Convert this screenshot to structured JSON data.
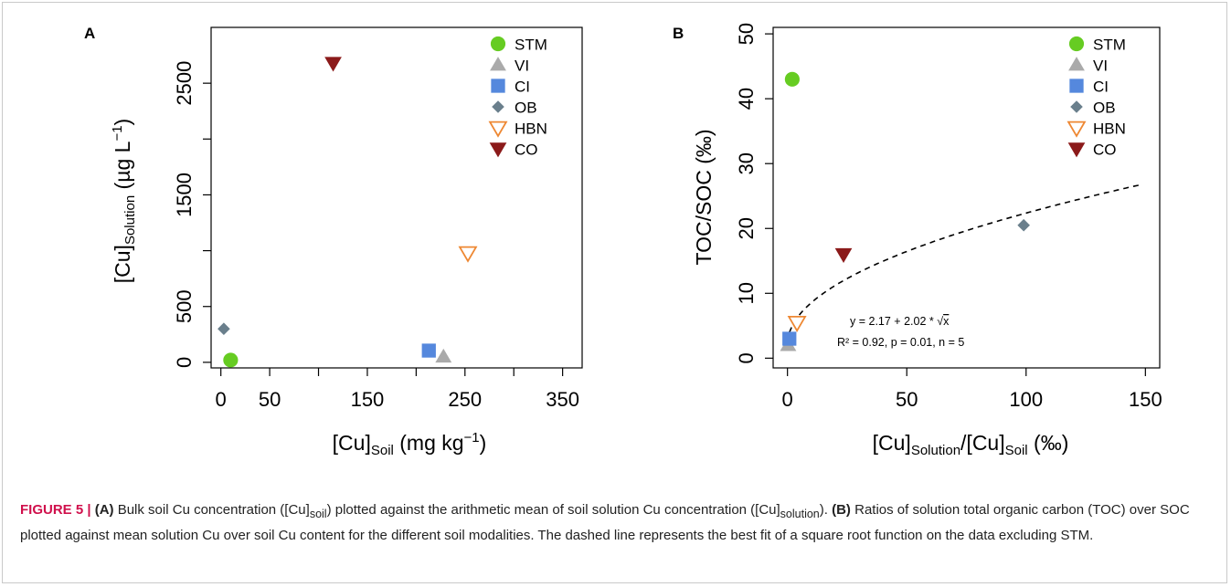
{
  "chart_data": [
    {
      "panel": "A",
      "type": "scatter",
      "xlim": [
        -10,
        370
      ],
      "ylim": [
        -50,
        3000
      ],
      "xticks": [
        {
          "v": 0,
          "t": "0"
        },
        {
          "v": 50,
          "t": "50"
        },
        {
          "v": 150,
          "t": "150"
        },
        {
          "v": 250,
          "t": "250"
        },
        {
          "v": 350,
          "t": "350"
        }
      ],
      "xtick_marks": [
        0,
        50,
        100,
        150,
        200,
        250,
        300,
        350
      ],
      "yticks": [
        {
          "v": 0,
          "t": "0"
        },
        {
          "v": 500,
          "t": "500"
        },
        {
          "v": 1500,
          "t": "1500"
        },
        {
          "v": 2500,
          "t": "2500"
        }
      ],
      "ytick_marks": [
        0,
        500,
        1000,
        1500,
        2000,
        2500
      ],
      "xlabel": {
        "main": "[Cu]",
        "sub": "Soil",
        "rest": " (mg kg",
        "sup": "−1",
        "end": ")"
      },
      "ylabel": {
        "main": "[Cu]",
        "sub": "Solution",
        "rest": " (µg L",
        "sup": "−1",
        "end": ")"
      },
      "grid": false,
      "legend_position": "top-right",
      "series": [
        {
          "name": "STM",
          "marker": "circle",
          "color": "#66cc22",
          "x": 10,
          "y": 20
        },
        {
          "name": "VI",
          "marker": "triangle-up",
          "color": "#aaaaaa",
          "x": 228,
          "y": 50
        },
        {
          "name": "CI",
          "marker": "square",
          "color": "#5588dd",
          "x": 213,
          "y": 105
        },
        {
          "name": "OB",
          "marker": "diamond",
          "color": "#6a7f8c",
          "x": 3,
          "y": 300
        },
        {
          "name": "HBN",
          "marker": "triangle-down-open",
          "color": "#ee8833",
          "x": 253,
          "y": 980
        },
        {
          "name": "CO",
          "marker": "triangle-down",
          "color": "#8b1a1a",
          "x": 115,
          "y": 2680
        }
      ]
    },
    {
      "panel": "B",
      "type": "scatter",
      "xlim": [
        -6,
        156
      ],
      "ylim": [
        -1.5,
        51
      ],
      "xticks": [
        {
          "v": 0,
          "t": "0"
        },
        {
          "v": 50,
          "t": "50"
        },
        {
          "v": 100,
          "t": "100"
        },
        {
          "v": 150,
          "t": "150"
        }
      ],
      "xtick_marks": [
        0,
        50,
        100,
        150
      ],
      "yticks": [
        {
          "v": 0,
          "t": "0"
        },
        {
          "v": 10,
          "t": "10"
        },
        {
          "v": 20,
          "t": "20"
        },
        {
          "v": 30,
          "t": "30"
        },
        {
          "v": 40,
          "t": "40"
        },
        {
          "v": 50,
          "t": "50"
        }
      ],
      "ytick_marks": [
        0,
        10,
        20,
        30,
        40,
        50
      ],
      "xlabel": {
        "main": "[Cu]",
        "sub": "Solution",
        "rest": "/[Cu]",
        "sub2": "Soil",
        "end": " (‰)"
      },
      "ylabel": {
        "main": "TOC/SOC (‰)"
      },
      "grid": false,
      "legend_position": "top-right",
      "series": [
        {
          "name": "STM",
          "marker": "circle",
          "color": "#66cc22",
          "x": 2,
          "y": 43
        },
        {
          "name": "VI",
          "marker": "triangle-up",
          "color": "#aaaaaa",
          "x": 0.3,
          "y": 2
        },
        {
          "name": "CI",
          "marker": "square",
          "color": "#5588dd",
          "x": 0.8,
          "y": 3
        },
        {
          "name": "OB",
          "marker": "diamond",
          "color": "#6a7f8c",
          "x": 99,
          "y": 20.5
        },
        {
          "name": "HBN",
          "marker": "triangle-down-open",
          "color": "#ee8833",
          "x": 4,
          "y": 5.5
        },
        {
          "name": "CO",
          "marker": "triangle-down",
          "color": "#8b1a1a",
          "x": 23.5,
          "y": 16
        }
      ],
      "fit": {
        "a": 2.17,
        "b": 2.02,
        "x_from": 0.8,
        "x_to": 148,
        "style": "dashed"
      },
      "annotation_line1": {
        "pre": "y =  2.17 + 2.02 * ",
        "sqrt": "√",
        "var": "x"
      },
      "annotation_line2": "R² = 0.92, p = 0.01, n = 5"
    }
  ],
  "caption": {
    "fig_label": "FIGURE 5 |",
    "a_label": "(A)",
    "a_text1": " Bulk soil Cu concentration ([Cu]",
    "a_sub1": "soil",
    "a_text2": ") plotted against the arithmetic mean of soil solution Cu concentration ([Cu]",
    "a_sub2": "solution",
    "a_text3": "). ",
    "b_label": "(B)",
    "b_text": " Ratios of solution total organic carbon (TOC) over SOC plotted against mean solution Cu over soil Cu content for the different soil modalities. The dashed line represents the best fit of a square root function on the data excluding STM."
  }
}
